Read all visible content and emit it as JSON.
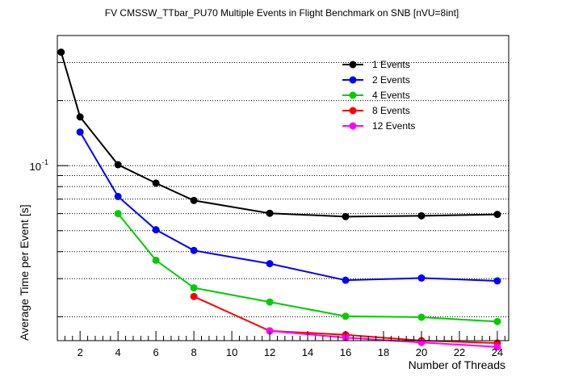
{
  "chart_data": {
    "type": "line",
    "title": "FV CMSSW_TTbar_PU70 Multiple Events in Flight Benchmark on SNB [nVU=8int]",
    "xlabel": "Number of Threads",
    "ylabel": "Average Time per Event [s]",
    "xlim": [
      0.8,
      24.6
    ],
    "ylim": [
      0.0155,
      0.4
    ],
    "yscale": "log",
    "grid": "horizontal dotted",
    "legend_position": "top-right",
    "x_ticks": [
      2,
      4,
      6,
      8,
      10,
      12,
      14,
      16,
      18,
      20,
      22,
      24
    ],
    "y_ticks": [
      {
        "value": 0.1,
        "label": "10",
        "exponent": "-1"
      }
    ],
    "series": [
      {
        "name": "1 Events",
        "color": "#000000",
        "x": [
          1,
          2,
          4,
          6,
          8,
          12,
          16,
          20,
          24
        ],
        "y": [
          0.335,
          0.168,
          0.101,
          0.083,
          0.069,
          0.0602,
          0.0581,
          0.0586,
          0.0595
        ]
      },
      {
        "name": "2 Events",
        "color": "#0000ff",
        "x": [
          2,
          4,
          6,
          8,
          12,
          16,
          20,
          24
        ],
        "y": [
          0.143,
          0.072,
          0.0505,
          0.0405,
          0.0352,
          0.0295,
          0.0302,
          0.0293
        ]
      },
      {
        "name": "4 Events",
        "color": "#00cc00",
        "x": [
          4,
          6,
          8,
          12,
          16,
          20,
          24
        ],
        "y": [
          0.06,
          0.0365,
          0.0272,
          0.0234,
          0.0201,
          0.0199,
          0.019
        ]
      },
      {
        "name": "8 Events",
        "color": "#ff0000",
        "x": [
          8,
          12,
          16,
          20,
          24
        ],
        "y": [
          0.0248,
          0.0172,
          0.0165,
          0.0155,
          0.0151
        ]
      },
      {
        "name": "12 Events",
        "color": "#ff00ff",
        "x": [
          12,
          16,
          20,
          24
        ],
        "y": [
          0.0172,
          0.016,
          0.0152,
          0.0145
        ]
      }
    ]
  }
}
